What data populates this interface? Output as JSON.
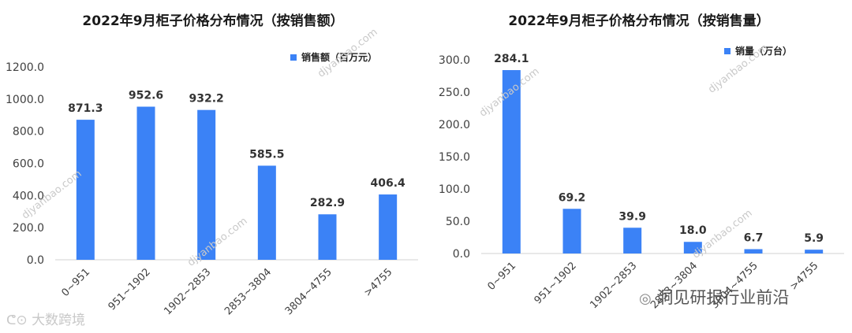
{
  "colors": {
    "bar": "#3b82f6",
    "axis": "#d0d0d0",
    "text": "#404040"
  },
  "chart_data": [
    {
      "type": "bar",
      "title": "2022年9月柜子价格分布情况（按销售额）",
      "categories": [
        "0~951",
        "951~1902",
        "1902~2853",
        "2853~3804",
        "3804~4755",
        ">4755"
      ],
      "series": [
        {
          "name": "销售额（百万元）",
          "values": [
            871.3,
            952.6,
            932.2,
            585.5,
            282.9,
            406.4
          ]
        }
      ],
      "value_labels": [
        "871.3",
        "952.6",
        "932.2",
        "585.5",
        "282.9",
        "406.4"
      ],
      "yticks": [
        "0.0",
        "200.0",
        "400.0",
        "600.0",
        "800.0",
        "1000.0",
        "1200.0"
      ],
      "ylim": [
        0,
        1200
      ],
      "legend_position": "top-right",
      "grid": false
    },
    {
      "type": "bar",
      "title": "2022年9月柜子价格分布情况（按销售量）",
      "categories": [
        "0~951",
        "951~1902",
        "1902~2853",
        "2853~3804",
        "3804~4755",
        ">4755"
      ],
      "series": [
        {
          "name": "销量（万台）",
          "values": [
            284.1,
            69.2,
            39.9,
            18.0,
            6.7,
            5.9
          ]
        }
      ],
      "value_labels": [
        "284.1",
        "69.2",
        "39.9",
        "18.0",
        "6.7",
        "5.9"
      ],
      "yticks": [
        "0.0",
        "50.0",
        "100.0",
        "150.0",
        "200.0",
        "250.0",
        "300.0"
      ],
      "ylim": [
        0,
        300
      ],
      "legend_position": "top-right",
      "grid": false
    }
  ],
  "watermarks": {
    "site": "djyanbao.com",
    "brand_left": "大数跨境",
    "brand_right": "洞见研报行业前沿"
  }
}
